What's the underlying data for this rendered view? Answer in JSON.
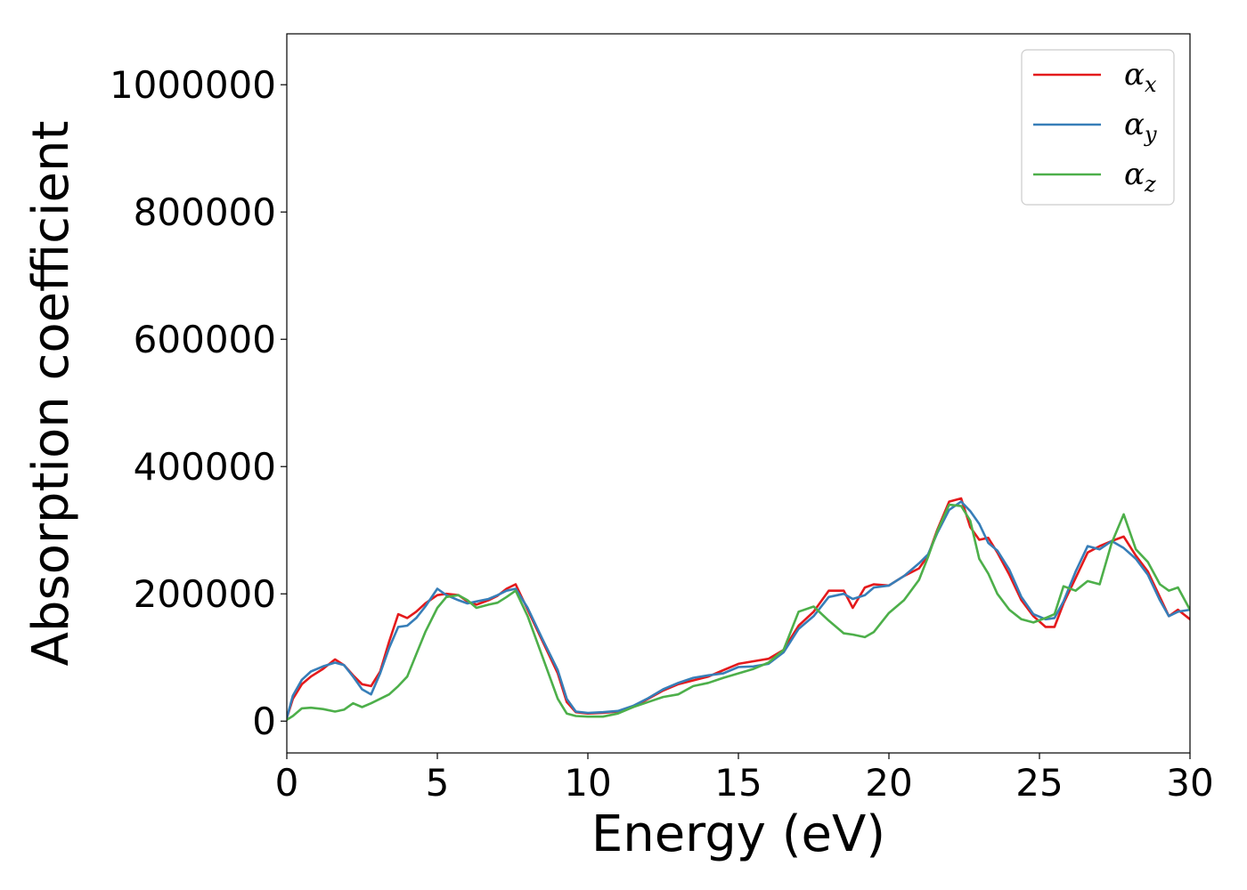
{
  "chart_data": {
    "type": "line",
    "title": "",
    "xlabel": "Energy (eV)",
    "ylabel": "Absorption coefficient",
    "xlim": [
      0,
      30
    ],
    "ylim": [
      -50000,
      1080000
    ],
    "xticks": [
      0,
      5,
      10,
      15,
      20,
      25,
      30
    ],
    "xtick_labels": [
      "0",
      "5",
      "10",
      "15",
      "20",
      "25",
      "30"
    ],
    "yticks": [
      0,
      200000,
      400000,
      600000,
      800000,
      1000000
    ],
    "ytick_labels": [
      "0",
      "200000",
      "400000",
      "600000",
      "800000",
      "1000000"
    ],
    "grid": false,
    "legend_position": "top-right",
    "series": [
      {
        "name": "α_x",
        "legend_symbol": "α",
        "legend_sub": "x",
        "color": "#e41a1c",
        "x": [
          0,
          0.2,
          0.5,
          0.8,
          1.2,
          1.6,
          1.9,
          2.2,
          2.5,
          2.8,
          3.1,
          3.4,
          3.7,
          4.0,
          4.3,
          4.6,
          5.0,
          5.3,
          5.7,
          6.0,
          6.3,
          6.7,
          7.0,
          7.3,
          7.6,
          8.0,
          8.5,
          9.0,
          9.3,
          9.6,
          10.0,
          10.5,
          11.0,
          11.5,
          12.0,
          12.5,
          13.0,
          13.5,
          14.0,
          14.5,
          15.0,
          15.5,
          16.0,
          16.5,
          17.0,
          17.5,
          18.0,
          18.5,
          18.8,
          19.2,
          19.5,
          20.0,
          20.5,
          21.0,
          21.3,
          21.6,
          22.0,
          22.4,
          22.7,
          23.0,
          23.3,
          23.6,
          24.0,
          24.4,
          24.8,
          25.2,
          25.5,
          25.8,
          26.2,
          26.6,
          27.0,
          27.4,
          27.8,
          28.2,
          28.6,
          29.0,
          29.3,
          29.6,
          30.0
        ],
        "y": [
          5000,
          35000,
          58000,
          70000,
          82000,
          97000,
          88000,
          72000,
          58000,
          55000,
          78000,
          125000,
          168000,
          162000,
          172000,
          185000,
          198000,
          200000,
          198000,
          188000,
          183000,
          190000,
          197000,
          208000,
          215000,
          175000,
          125000,
          75000,
          30000,
          14000,
          12000,
          13000,
          15000,
          22000,
          35000,
          48000,
          58000,
          64000,
          70000,
          80000,
          90000,
          94000,
          98000,
          112000,
          150000,
          172000,
          205000,
          205000,
          178000,
          210000,
          215000,
          213000,
          228000,
          240000,
          260000,
          300000,
          345000,
          350000,
          305000,
          285000,
          288000,
          265000,
          230000,
          190000,
          165000,
          148000,
          148000,
          185000,
          225000,
          265000,
          275000,
          283000,
          290000,
          260000,
          235000,
          195000,
          165000,
          175000,
          160000
        ]
      },
      {
        "name": "α_y",
        "legend_symbol": "α",
        "legend_sub": "y",
        "color": "#377eb8",
        "x": [
          0,
          0.2,
          0.5,
          0.8,
          1.2,
          1.6,
          1.9,
          2.2,
          2.5,
          2.8,
          3.1,
          3.4,
          3.7,
          4.0,
          4.3,
          4.6,
          5.0,
          5.3,
          5.7,
          6.0,
          6.3,
          6.7,
          7.0,
          7.3,
          7.6,
          8.0,
          8.5,
          9.0,
          9.3,
          9.6,
          10.0,
          10.5,
          11.0,
          11.5,
          12.0,
          12.5,
          13.0,
          13.5,
          14.0,
          14.5,
          15.0,
          15.5,
          16.0,
          16.5,
          17.0,
          17.5,
          18.0,
          18.5,
          18.8,
          19.2,
          19.5,
          20.0,
          20.5,
          21.0,
          21.3,
          21.6,
          22.0,
          22.4,
          22.7,
          23.0,
          23.3,
          23.6,
          24.0,
          24.4,
          24.8,
          25.2,
          25.5,
          25.8,
          26.2,
          26.6,
          27.0,
          27.4,
          27.8,
          28.2,
          28.6,
          29.0,
          29.3,
          29.6,
          30.0
        ],
        "y": [
          5000,
          40000,
          65000,
          78000,
          86000,
          92000,
          88000,
          70000,
          50000,
          42000,
          75000,
          115000,
          148000,
          150000,
          162000,
          180000,
          208000,
          198000,
          190000,
          185000,
          188000,
          192000,
          198000,
          205000,
          208000,
          178000,
          128000,
          80000,
          35000,
          15000,
          13000,
          14000,
          16000,
          24000,
          36000,
          50000,
          60000,
          68000,
          72000,
          75000,
          85000,
          86000,
          90000,
          108000,
          145000,
          165000,
          195000,
          200000,
          192000,
          198000,
          210000,
          213000,
          228000,
          248000,
          262000,
          295000,
          332000,
          345000,
          330000,
          310000,
          280000,
          268000,
          238000,
          195000,
          168000,
          160000,
          162000,
          188000,
          235000,
          275000,
          270000,
          283000,
          272000,
          255000,
          230000,
          190000,
          165000,
          172000,
          175000
        ]
      },
      {
        "name": "α_z",
        "legend_symbol": "α",
        "legend_sub": "z",
        "color": "#4daf4a",
        "x": [
          0,
          0.2,
          0.5,
          0.8,
          1.2,
          1.6,
          1.9,
          2.2,
          2.5,
          2.8,
          3.1,
          3.4,
          3.7,
          4.0,
          4.3,
          4.6,
          5.0,
          5.3,
          5.7,
          6.0,
          6.3,
          6.7,
          7.0,
          7.3,
          7.6,
          8.0,
          8.5,
          9.0,
          9.3,
          9.6,
          10.0,
          10.5,
          11.0,
          11.5,
          12.0,
          12.5,
          13.0,
          13.5,
          14.0,
          14.5,
          15.0,
          15.5,
          16.0,
          16.5,
          17.0,
          17.5,
          18.0,
          18.5,
          18.8,
          19.2,
          19.5,
          20.0,
          20.5,
          21.0,
          21.3,
          21.6,
          22.0,
          22.4,
          22.7,
          23.0,
          23.3,
          23.6,
          24.0,
          24.4,
          24.8,
          25.2,
          25.5,
          25.8,
          26.2,
          26.6,
          27.0,
          27.4,
          27.8,
          28.2,
          28.6,
          29.0,
          29.3,
          29.6,
          30.0
        ],
        "y": [
          2000,
          8000,
          20000,
          21000,
          19000,
          15000,
          18000,
          28000,
          22000,
          28000,
          35000,
          42000,
          55000,
          70000,
          105000,
          140000,
          178000,
          195000,
          198000,
          190000,
          178000,
          183000,
          186000,
          195000,
          205000,
          165000,
          100000,
          35000,
          12000,
          8000,
          7000,
          7000,
          12000,
          22000,
          30000,
          38000,
          42000,
          55000,
          60000,
          68000,
          75000,
          82000,
          92000,
          112000,
          172000,
          180000,
          158000,
          138000,
          136000,
          132000,
          140000,
          170000,
          190000,
          222000,
          258000,
          298000,
          340000,
          338000,
          315000,
          255000,
          232000,
          200000,
          175000,
          160000,
          155000,
          162000,
          168000,
          212000,
          205000,
          220000,
          215000,
          280000,
          325000,
          270000,
          250000,
          215000,
          205000,
          210000,
          175000
        ]
      }
    ]
  }
}
